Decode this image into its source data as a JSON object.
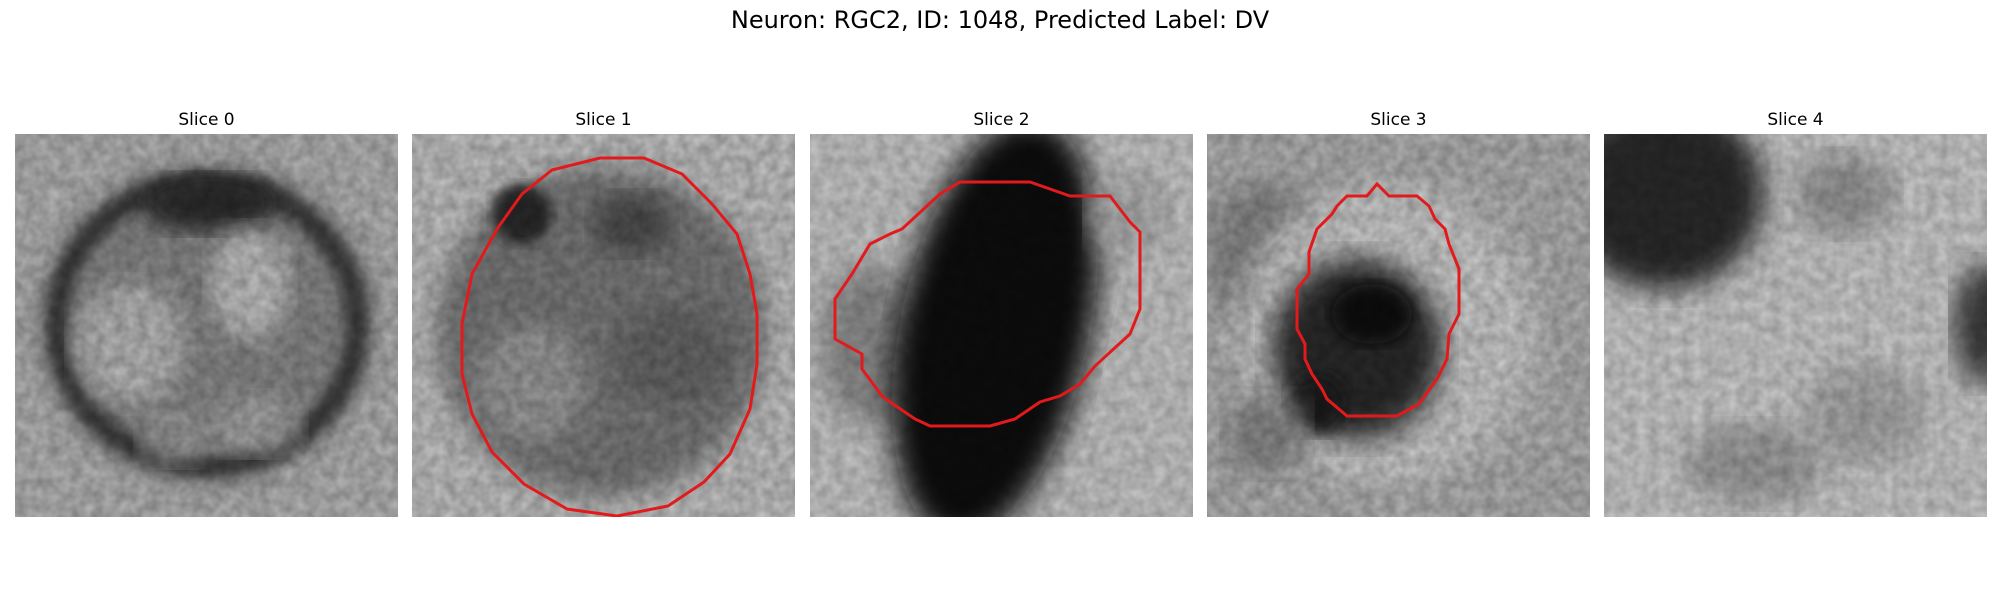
{
  "figure": {
    "title": "Neuron: RGC2, ID: 1048, Predicted Label: DV"
  },
  "panels": [
    {
      "title": "Slice 0"
    },
    {
      "title": "Slice 1"
    },
    {
      "title": "Slice 2"
    },
    {
      "title": "Slice 3"
    },
    {
      "title": "Slice 4"
    }
  ],
  "colors": {
    "contour": "#e31a1c",
    "background": "#ffffff"
  }
}
